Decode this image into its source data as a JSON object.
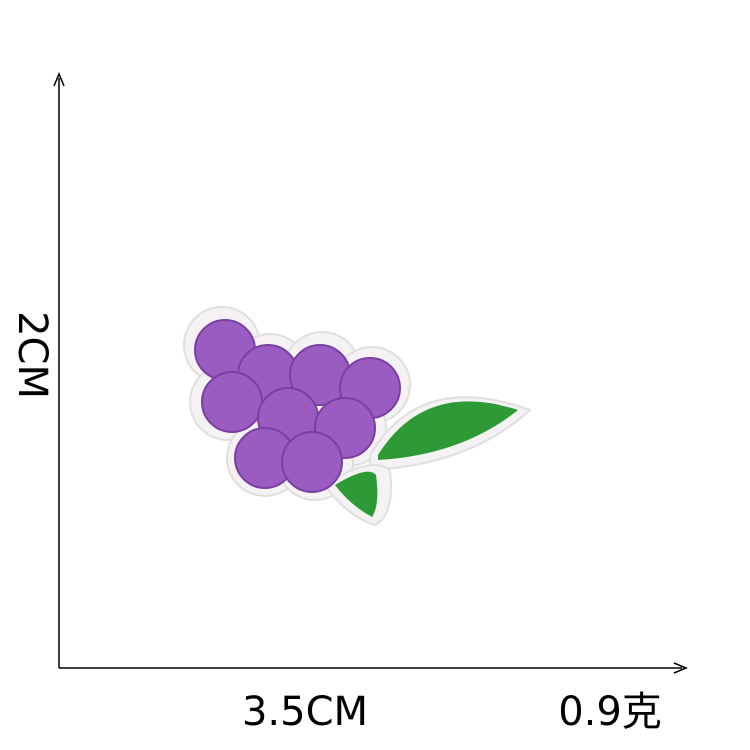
{
  "height_label": "2CM",
  "width_label": "3.5CM",
  "weight_label": "0.9克"
}
